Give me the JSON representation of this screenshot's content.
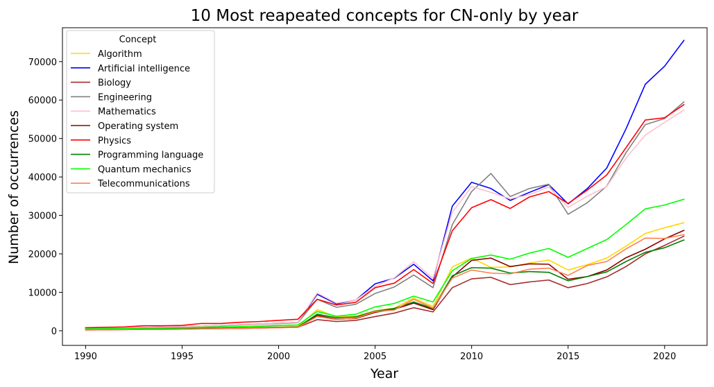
{
  "chart_data": {
    "type": "line",
    "title": "10 Most reapeated concepts for CN-only by year",
    "xlabel": "Year",
    "ylabel": "Number of occurrences",
    "xlim": [
      1988.8,
      2022.2
    ],
    "ylim": [
      -3800,
      78800
    ],
    "x_ticks": [
      1990,
      1995,
      2000,
      2005,
      2010,
      2015,
      2020
    ],
    "y_ticks": [
      0,
      10000,
      20000,
      30000,
      40000,
      50000,
      60000,
      70000
    ],
    "grid": false,
    "legend_position": "upper-left",
    "legend_title": "Concept",
    "x": [
      1990,
      1991,
      1992,
      1993,
      1994,
      1995,
      1996,
      1997,
      1998,
      1999,
      2000,
      2001,
      2002,
      2003,
      2004,
      2005,
      2006,
      2007,
      2008,
      2009,
      2010,
      2011,
      2012,
      2013,
      2014,
      2015,
      2016,
      2017,
      2018,
      2019,
      2020,
      2021
    ],
    "series": [
      {
        "name": "Algorithm",
        "color": "#FFD700",
        "values": [
          400,
          450,
          500,
          550,
          550,
          600,
          700,
          750,
          800,
          900,
          1000,
          1100,
          5500,
          3600,
          3800,
          5200,
          5900,
          8500,
          6300,
          16600,
          18900,
          16500,
          16600,
          17600,
          18400,
          15800,
          17200,
          18900,
          22000,
          25300,
          26800,
          28100
        ]
      },
      {
        "name": "Artificial intelligence",
        "color": "#0000FF",
        "values": [
          600,
          700,
          800,
          900,
          1000,
          1100,
          1200,
          1400,
          1600,
          1800,
          2000,
          2200,
          9500,
          7000,
          8000,
          12200,
          13700,
          17300,
          13000,
          32400,
          38600,
          37000,
          33900,
          36000,
          38000,
          33000,
          37000,
          42300,
          52500,
          64100,
          68800,
          75500
        ]
      },
      {
        "name": "Biology",
        "color": "#A52A2A",
        "values": [
          200,
          250,
          300,
          350,
          350,
          400,
          500,
          550,
          600,
          700,
          800,
          900,
          2900,
          2400,
          2700,
          3700,
          4600,
          6000,
          4900,
          11200,
          13500,
          13900,
          12000,
          12700,
          13200,
          11200,
          12300,
          14000,
          16700,
          20000,
          22200,
          24600
        ]
      },
      {
        "name": "Engineering",
        "color": "#808080",
        "values": [
          500,
          600,
          700,
          800,
          900,
          1000,
          1100,
          1300,
          1500,
          1700,
          1900,
          2100,
          8200,
          6100,
          6900,
          9700,
          11400,
          14500,
          11200,
          27600,
          36200,
          40900,
          34900,
          37000,
          38100,
          30300,
          33300,
          37600,
          46300,
          53600,
          55200,
          59500
        ]
      },
      {
        "name": "Mathematics",
        "color": "#FFC0CB",
        "values": [
          600,
          700,
          800,
          900,
          1000,
          1100,
          1200,
          1400,
          1600,
          1800,
          2000,
          2200,
          9800,
          7200,
          8000,
          11500,
          13800,
          18000,
          13600,
          30800,
          37500,
          36000,
          34300,
          35400,
          37400,
          32100,
          35000,
          37500,
          44900,
          50900,
          54200,
          57400
        ]
      },
      {
        "name": "Operating system",
        "color": "#8B0000",
        "values": [
          300,
          350,
          400,
          450,
          450,
          500,
          600,
          650,
          700,
          800,
          900,
          1000,
          4000,
          3000,
          3200,
          4800,
          5600,
          7200,
          5500,
          14000,
          18300,
          18900,
          16700,
          17400,
          17300,
          13400,
          14100,
          15800,
          19000,
          21200,
          23900,
          26100
        ]
      },
      {
        "name": "Physics",
        "color": "#FF0000",
        "values": [
          800,
          900,
          1000,
          1300,
          1300,
          1400,
          1900,
          1900,
          2200,
          2400,
          2700,
          3000,
          8200,
          6700,
          7400,
          11200,
          12400,
          15900,
          12300,
          26000,
          32000,
          34100,
          31800,
          34800,
          36200,
          33100,
          36600,
          40500,
          47600,
          54800,
          55400,
          58800
        ]
      },
      {
        "name": "Programming language",
        "color": "#008000",
        "values": [
          300,
          350,
          400,
          450,
          450,
          500,
          600,
          650,
          700,
          800,
          900,
          1000,
          4300,
          3400,
          3600,
          5100,
          5800,
          7500,
          5800,
          14300,
          16400,
          16300,
          15000,
          15400,
          15200,
          13000,
          14100,
          15300,
          18000,
          20400,
          21600,
          23600
        ]
      },
      {
        "name": "Quantum mechanics",
        "color": "#00FF00",
        "values": [
          500,
          550,
          600,
          700,
          700,
          800,
          900,
          1000,
          1100,
          1200,
          1400,
          1500,
          5000,
          3800,
          4300,
          6200,
          7100,
          9000,
          7500,
          15600,
          18800,
          19700,
          18600,
          20200,
          21400,
          19100,
          21400,
          23700,
          27600,
          31700,
          32700,
          34200
        ]
      },
      {
        "name": "Telecommunications",
        "color": "#FF7F50",
        "values": [
          200,
          250,
          300,
          350,
          350,
          400,
          500,
          550,
          600,
          700,
          800,
          900,
          3700,
          2900,
          3300,
          5000,
          5400,
          8200,
          5900,
          13700,
          15800,
          15000,
          14800,
          16000,
          16300,
          14400,
          17000,
          18000,
          21300,
          24100,
          24000,
          25000
        ]
      }
    ]
  }
}
